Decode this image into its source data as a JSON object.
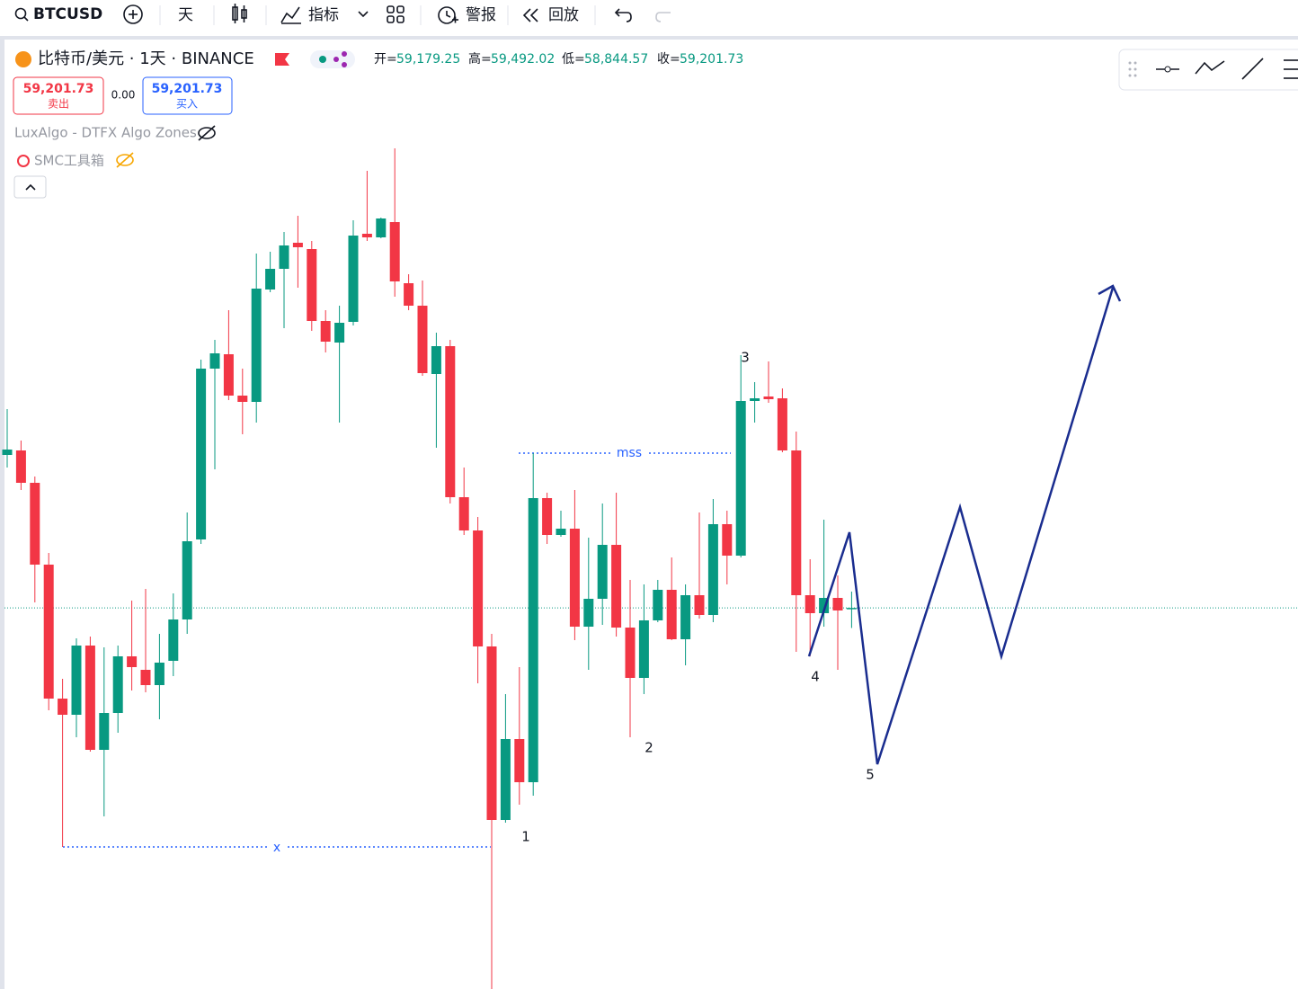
{
  "toolbar": {
    "symbol": "BTCUSD",
    "interval": "天",
    "indicators": "指标",
    "alert": "警报",
    "replay": "回放"
  },
  "legend": {
    "title": "比特币/美元 · 1天 · BINANCE",
    "ohlc": [
      {
        "label": "开=",
        "value": "59,179.25"
      },
      {
        "label": "高=",
        "value": "59,492.02"
      },
      {
        "label": "低=",
        "value": "58,844.57"
      },
      {
        "label": "收=",
        "value": "59,201.73"
      }
    ],
    "sell_price": "59,201.73",
    "sell_label": "卖出",
    "spread": "0.00",
    "buy_price": "59,201.73",
    "buy_label": "买入",
    "indicators": [
      "LuxAlgo - DTFX Algo Zones",
      "SMC工具箱"
    ]
  },
  "chart_data": {
    "type": "candlestick",
    "up_color": "#089981",
    "down_color": "#f23645",
    "ylim": [
      52420,
      69380
    ],
    "open": [
      61924,
      62004,
      61428,
      59972,
      57588,
      57300,
      58532,
      56676,
      57332,
      58340,
      58100,
      57828,
      58260,
      58996,
      60420,
      63460,
      63716,
      62980,
      62868,
      64868,
      65236,
      65700,
      65588,
      64308,
      63924,
      64292,
      65860,
      65796,
      66068,
      64980,
      64580,
      63364,
      63860,
      61172,
      60580,
      58516,
      55428,
      56868,
      56100,
      61156,
      60500,
      60612,
      58868,
      59364,
      60324,
      58852,
      57956,
      58980,
      59524,
      58644,
      59428,
      59076,
      60692,
      60132,
      62884,
      62964,
      62932,
      62004,
      59428,
      59108,
      59380,
      59179.25
    ],
    "high": [
      62740,
      62180,
      61540,
      60180,
      57940,
      58660,
      58692,
      58500,
      58532,
      59332,
      59540,
      58740,
      59460,
      60900,
      63620,
      63972,
      64500,
      63460,
      65508,
      65540,
      65892,
      66180,
      65732,
      64500,
      64580,
      66100,
      66980,
      66148,
      67380,
      65140,
      65028,
      64100,
      63972,
      61700,
      60820,
      58740,
      57668,
      58148,
      61956,
      61252,
      60932,
      61300,
      60452,
      61060,
      61252,
      59700,
      59620,
      59700,
      60100,
      59620,
      60900,
      61140,
      60932,
      63700,
      63220,
      63588,
      63108,
      62340,
      60068,
      60772,
      59780,
      59492.02
    ],
    "low": [
      61700,
      61300,
      59300,
      57380,
      54948,
      56900,
      56644,
      55492,
      56980,
      57732,
      57700,
      57220,
      57988,
      58740,
      60340,
      61668,
      62900,
      62292,
      62500,
      64820,
      64180,
      64900,
      64132,
      63748,
      62500,
      64228,
      65732,
      65780,
      64740,
      64500,
      63332,
      62052,
      61060,
      60500,
      57860,
      52420,
      55380,
      55700,
      55860,
      60340,
      60468,
      58628,
      58100,
      58900,
      58692,
      56900,
      57668,
      58948,
      58628,
      58180,
      59012,
      58948,
      59620,
      60100,
      62500,
      62852,
      61972,
      58420,
      58340,
      58868,
      58100,
      58844.57
    ],
    "close": [
      62020,
      61428,
      59972,
      57588,
      57300,
      58532,
      56676,
      57332,
      58340,
      58148,
      57828,
      58228,
      58996,
      60388,
      63460,
      63732,
      62980,
      62868,
      64884,
      65236,
      65652,
      65620,
      64308,
      63940,
      64276,
      65828,
      65796,
      66132,
      65012,
      64580,
      63380,
      63860,
      61172,
      60580,
      58516,
      55428,
      56868,
      56100,
      61156,
      60500,
      60612,
      58868,
      59364,
      60324,
      58852,
      57956,
      58980,
      59524,
      58644,
      59428,
      59076,
      60692,
      60132,
      62884,
      62932,
      62916,
      62004,
      59428,
      59108,
      59380,
      59156,
      59201.73
    ],
    "annotations": [
      "1",
      "2",
      "3",
      "4",
      "5",
      "x",
      "mss"
    ]
  }
}
